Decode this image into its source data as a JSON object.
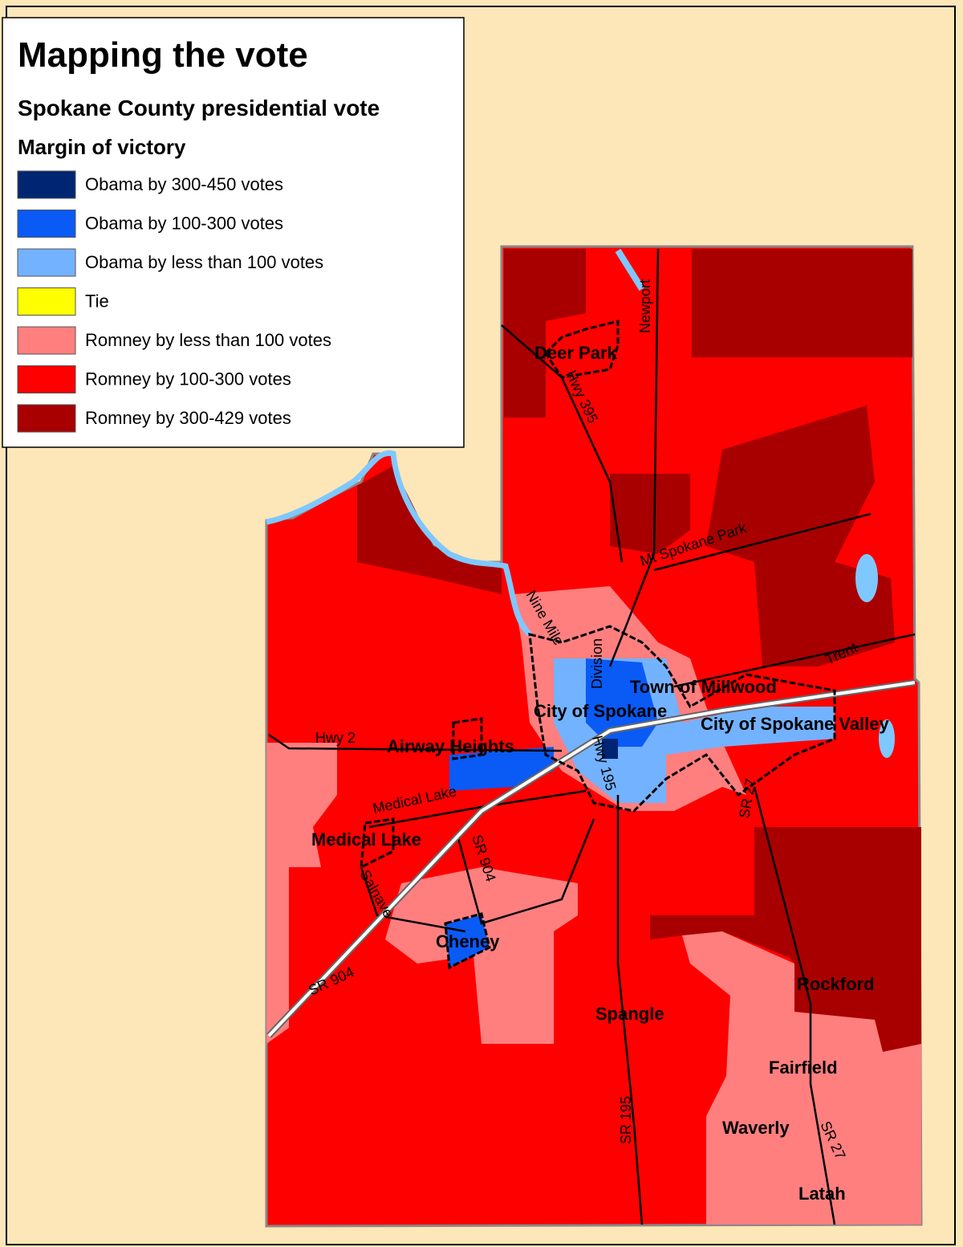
{
  "header": {
    "title": "Mapping the vote",
    "subtitle": "Spokane County presidential vote",
    "legend_title": "Margin of victory"
  },
  "legend": {
    "items": [
      {
        "label": "Obama by 300-450 votes",
        "color": "#002673"
      },
      {
        "label": "Obama by 100-300 votes",
        "color": "#0a5af5"
      },
      {
        "label": "Obama by less than 100 votes",
        "color": "#73b2ff"
      },
      {
        "label": "Tie",
        "color": "#ffff00"
      },
      {
        "label": "Romney by less than 100 votes",
        "color": "#ff7f7f"
      },
      {
        "label": "Romney by 100-300 votes",
        "color": "#ff0000"
      },
      {
        "label": "Romney by 300-429 votes",
        "color": "#a80000"
      }
    ]
  },
  "places": [
    "Deer Park",
    "Town of Millwood",
    "City of Spokane",
    "City of Spokane Valley",
    "Airway Heights",
    "Medical Lake",
    "Cheney",
    "Spangle",
    "Rockford",
    "Fairfield",
    "Waverly",
    "Latah"
  ],
  "roads": [
    "Newport",
    "Hwy 395",
    "Mt Spokane Park",
    "Nine Mile",
    "Division",
    "Trent",
    "Hwy 2",
    "Medical Lake",
    "SR 904",
    "SR 904",
    "Salnave",
    "SR 195",
    "SR 27",
    "SR 27",
    "Hwy 195"
  ]
}
